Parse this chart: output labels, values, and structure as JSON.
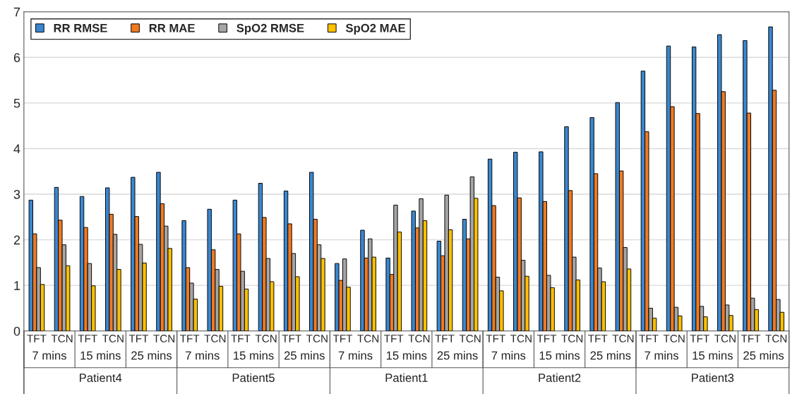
{
  "chart_data": {
    "type": "bar",
    "categories": [
      "TFT",
      "TCN",
      "TFT",
      "TCN",
      "TFT",
      "TCN",
      "TFT",
      "TCN",
      "TFT",
      "TCN",
      "TFT",
      "TCN",
      "TFT",
      "TCN",
      "TFT",
      "TCN",
      "TFT",
      "TCN",
      "TFT",
      "TCN",
      "TFT",
      "TCN",
      "TFT",
      "TCN",
      "TFT",
      "TCN",
      "TFT",
      "TCN",
      "TFT",
      "TCN"
    ],
    "series": [
      {
        "name": "RR RMSE",
        "color": "#3a87d0",
        "values": [
          2.87,
          3.15,
          2.95,
          3.14,
          3.37,
          3.48,
          2.42,
          2.67,
          2.87,
          3.24,
          3.07,
          3.48,
          1.48,
          2.21,
          1.6,
          2.63,
          1.97,
          2.45,
          3.77,
          3.92,
          3.93,
          4.48,
          4.68,
          5.01,
          5.7,
          6.25,
          6.23,
          6.5,
          6.37,
          6.67
        ]
      },
      {
        "name": "RR MAE",
        "color": "#f07a22",
        "values": [
          2.13,
          2.43,
          2.27,
          2.56,
          2.51,
          2.79,
          1.39,
          1.78,
          2.13,
          2.49,
          2.35,
          2.45,
          1.11,
          1.6,
          1.24,
          2.26,
          1.65,
          2.02,
          2.75,
          2.92,
          2.84,
          3.08,
          3.45,
          3.51,
          4.37,
          4.92,
          4.77,
          5.25,
          4.78,
          5.28
        ]
      },
      {
        "name": "SpO2 RMSE",
        "color": "#a5a5a5",
        "values": [
          1.39,
          1.89,
          1.48,
          2.12,
          1.9,
          2.3,
          1.05,
          1.35,
          1.31,
          1.59,
          1.7,
          1.89,
          1.58,
          2.02,
          2.76,
          2.9,
          2.98,
          3.38,
          1.18,
          1.55,
          1.22,
          1.62,
          1.38,
          1.83,
          0.5,
          0.52,
          0.54,
          0.57,
          0.72,
          0.69
        ]
      },
      {
        "name": "SpO2 MAE",
        "color": "#ffc000",
        "values": [
          1.02,
          1.43,
          0.99,
          1.35,
          1.49,
          1.81,
          0.7,
          0.98,
          0.92,
          1.08,
          1.19,
          1.59,
          0.96,
          1.62,
          2.17,
          2.42,
          2.22,
          2.91,
          0.88,
          1.2,
          0.95,
          1.12,
          1.08,
          1.36,
          0.28,
          0.33,
          0.31,
          0.34,
          0.47,
          0.41
        ]
      }
    ],
    "annotations": [
      "7 mins",
      "15 mins",
      "25 mins",
      "7 mins",
      "15 mins",
      "25 mins",
      "7 mins",
      "15 mins",
      "25 mins",
      "7 mins",
      "15 mins",
      "25 mins",
      "7 mins",
      "15 mins",
      "25 mins",
      "Patient4",
      "Patient5",
      "Patient1",
      "Patient2",
      "Patient3"
    ],
    "ylim": [
      0,
      7
    ],
    "yticks": [
      0,
      1,
      2,
      3,
      4,
      5,
      6,
      7
    ],
    "grid": "y",
    "legend": "top left"
  }
}
